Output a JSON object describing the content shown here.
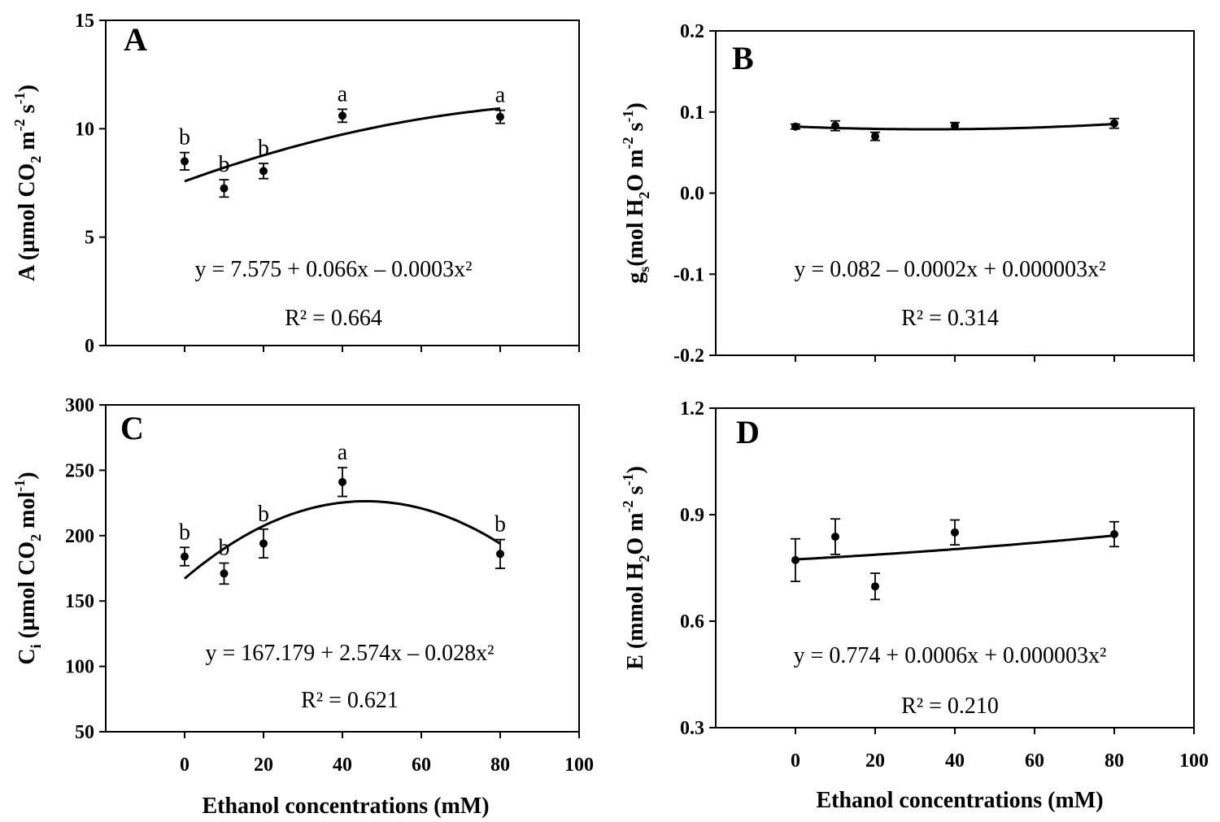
{
  "figure": {
    "x_title": "Ethanol concentrations (mM)"
  },
  "chart_data": [
    {
      "id": "A",
      "type": "scatter",
      "panel_label": "A",
      "ylabel": {
        "main": "A (µmol CO",
        "sub": "2",
        "mid": " m",
        "sup1": "-2",
        "mid2": " s",
        "sup2": "-1",
        "end": ")"
      },
      "xlim": [
        -20,
        100
      ],
      "ylim": [
        0,
        15
      ],
      "xticks": [
        0,
        20,
        40,
        60,
        80,
        100
      ],
      "yticks": [
        0,
        5,
        10,
        15
      ],
      "ytick_labels": [
        "0",
        "5",
        "10",
        "15"
      ],
      "xtick_labels": [],
      "x": [
        0,
        10,
        20,
        40,
        80
      ],
      "y": [
        8.5,
        7.25,
        8.05,
        10.6,
        10.55
      ],
      "yerr": [
        0.4,
        0.4,
        0.35,
        0.3,
        0.3
      ],
      "sig_letters": [
        "b",
        "b",
        "b",
        "a",
        "a"
      ],
      "fit_coeffs": [
        7.575,
        0.066,
        -0.0003
      ],
      "fit_range": [
        0,
        80
      ],
      "equation": "y = 7.575 + 0.066x – 0.0003x²",
      "r2": "R² = 0.664"
    },
    {
      "id": "B",
      "type": "scatter",
      "panel_label": "B",
      "ylabel": {
        "main": "g",
        "sub": "s",
        "mid": "(mol H",
        "sub2": "2",
        "mid2": "O m",
        "sup1": "-2",
        "mid3": " s",
        "sup2": "-1",
        "end": ")"
      },
      "xlim": [
        -20,
        100
      ],
      "ylim": [
        -0.2,
        0.2
      ],
      "xticks": [
        0,
        20,
        40,
        60,
        80,
        100
      ],
      "yticks": [
        -0.2,
        -0.1,
        0.0,
        0.1,
        0.2
      ],
      "ytick_labels": [
        "-0.2",
        "-0.1",
        "0.0",
        "0.1",
        "0.2"
      ],
      "xtick_labels": [],
      "x": [
        0,
        10,
        20,
        40,
        80
      ],
      "y": [
        0.082,
        0.083,
        0.07,
        0.083,
        0.086
      ],
      "yerr": [
        0.003,
        0.006,
        0.005,
        0.004,
        0.006
      ],
      "sig_letters": [],
      "fit_coeffs": [
        0.082,
        -0.0002,
        3e-06
      ],
      "fit_range": [
        0,
        80
      ],
      "equation": "y = 0.082 – 0.0002x + 0.000003x²",
      "r2": "R² = 0.314"
    },
    {
      "id": "C",
      "type": "scatter",
      "panel_label": "C",
      "ylabel": {
        "main": "C",
        "sub": "i",
        "mid": " (µmol CO",
        "sub2": "2",
        "mid2": " mol",
        "sup1": "-1",
        "end": ")"
      },
      "xlim": [
        -20,
        100
      ],
      "ylim": [
        50,
        300
      ],
      "xticks": [
        0,
        20,
        40,
        60,
        80,
        100
      ],
      "yticks": [
        50,
        100,
        150,
        200,
        250,
        300
      ],
      "ytick_labels": [
        "50",
        "100",
        "150",
        "200",
        "250",
        "300"
      ],
      "xtick_labels": [
        "0",
        "20",
        "40",
        "60",
        "80",
        "100"
      ],
      "x": [
        0,
        10,
        20,
        40,
        80
      ],
      "y": [
        184,
        171,
        194,
        241,
        186
      ],
      "yerr": [
        7,
        8,
        11,
        11,
        11
      ],
      "sig_letters": [
        "b",
        "b",
        "b",
        "a",
        "b"
      ],
      "fit_coeffs": [
        167.179,
        2.574,
        -0.028
      ],
      "fit_range": [
        0,
        80
      ],
      "equation": "y = 167.179 + 2.574x – 0.028x²",
      "r2": "R² = 0.621"
    },
    {
      "id": "D",
      "type": "scatter",
      "panel_label": "D",
      "ylabel": {
        "main": "E (mmol H",
        "sub": "2",
        "mid": "O m",
        "sup1": "-2",
        "mid2": " s",
        "sup2": "-1",
        "end": ")"
      },
      "xlim": [
        -20,
        100
      ],
      "ylim": [
        0.3,
        1.2
      ],
      "xticks": [
        0,
        20,
        40,
        60,
        80,
        100
      ],
      "yticks": [
        0.3,
        0.6,
        0.9,
        1.2
      ],
      "ytick_labels": [
        "0.3",
        "0.6",
        "0.9",
        "1.2"
      ],
      "xtick_labels": [
        "0",
        "20",
        "40",
        "60",
        "80",
        "100"
      ],
      "x": [
        0,
        10,
        20,
        40,
        80
      ],
      "y": [
        0.772,
        0.838,
        0.698,
        0.85,
        0.845
      ],
      "yerr": [
        0.06,
        0.05,
        0.037,
        0.035,
        0.035
      ],
      "sig_letters": [],
      "fit_coeffs": [
        0.774,
        0.0006,
        3e-06
      ],
      "fit_range": [
        0,
        80
      ],
      "equation": "y = 0.774 + 0.0006x + 0.000003x²",
      "r2": "R² = 0.210"
    }
  ]
}
